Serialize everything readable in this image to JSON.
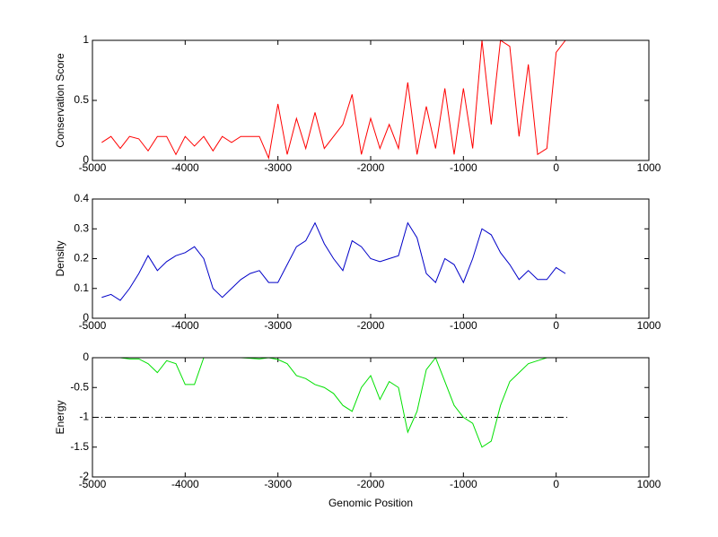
{
  "chart_data": [
    {
      "type": "line",
      "ylabel": "Conservation Score",
      "color": "#ff0000",
      "x": [
        -4900,
        -4800,
        -4700,
        -4600,
        -4500,
        -4400,
        -4300,
        -4200,
        -4100,
        -4000,
        -3900,
        -3800,
        -3700,
        -3600,
        -3500,
        -3400,
        -3300,
        -3200,
        -3100,
        -3000,
        -2900,
        -2800,
        -2700,
        -2600,
        -2500,
        -2400,
        -2300,
        -2200,
        -2100,
        -2000,
        -1900,
        -1800,
        -1700,
        -1600,
        -1500,
        -1400,
        -1300,
        -1200,
        -1100,
        -1000,
        -900,
        -800,
        -700,
        -600,
        -500,
        -400,
        -300,
        -200,
        -100,
        0,
        100
      ],
      "values": [
        0.15,
        0.2,
        0.1,
        0.2,
        0.18,
        0.08,
        0.2,
        0.2,
        0.05,
        0.2,
        0.12,
        0.2,
        0.08,
        0.2,
        0.15,
        0.2,
        0.2,
        0.2,
        0.02,
        0.47,
        0.05,
        0.35,
        0.1,
        0.4,
        0.1,
        0.2,
        0.3,
        0.55,
        0.05,
        0.35,
        0.1,
        0.3,
        0.1,
        0.65,
        0.05,
        0.45,
        0.1,
        0.6,
        0.05,
        0.6,
        0.1,
        1,
        0.3,
        1,
        0.95,
        0.2,
        0.8,
        0.05,
        0.1,
        0.9,
        1
      ],
      "xlim": [
        -5000,
        1000
      ],
      "xticks": [
        -5000,
        -4000,
        -3000,
        -2000,
        -1000,
        0,
        1000
      ],
      "ylim": [
        0,
        1
      ],
      "yticks": [
        0,
        0.5,
        1
      ]
    },
    {
      "type": "line",
      "ylabel": "Density",
      "color": "#0000c8",
      "x": [
        -4900,
        -4800,
        -4700,
        -4600,
        -4500,
        -4400,
        -4300,
        -4200,
        -4100,
        -4000,
        -3900,
        -3800,
        -3700,
        -3600,
        -3500,
        -3400,
        -3300,
        -3200,
        -3100,
        -3000,
        -2900,
        -2800,
        -2700,
        -2600,
        -2500,
        -2400,
        -2300,
        -2200,
        -2100,
        -2000,
        -1900,
        -1800,
        -1700,
        -1600,
        -1500,
        -1400,
        -1300,
        -1200,
        -1100,
        -1000,
        -900,
        -800,
        -700,
        -600,
        -500,
        -400,
        -300,
        -200,
        -100,
        0,
        100
      ],
      "values": [
        0.07,
        0.08,
        0.06,
        0.1,
        0.15,
        0.21,
        0.16,
        0.19,
        0.21,
        0.22,
        0.24,
        0.2,
        0.1,
        0.07,
        0.1,
        0.13,
        0.15,
        0.16,
        0.12,
        0.12,
        0.18,
        0.24,
        0.26,
        0.32,
        0.25,
        0.2,
        0.16,
        0.26,
        0.24,
        0.2,
        0.19,
        0.2,
        0.21,
        0.32,
        0.27,
        0.15,
        0.12,
        0.2,
        0.18,
        0.12,
        0.2,
        0.3,
        0.28,
        0.22,
        0.18,
        0.13,
        0.16,
        0.13,
        0.13,
        0.17,
        0.15
      ],
      "xlim": [
        -5000,
        1000
      ],
      "xticks": [
        -5000,
        -4000,
        -3000,
        -2000,
        -1000,
        0,
        1000
      ],
      "ylim": [
        0,
        0.4
      ],
      "yticks": [
        0,
        0.1,
        0.2,
        0.3,
        0.4
      ]
    },
    {
      "type": "line",
      "ylabel": "Energy",
      "xlabel": "Genomic Position",
      "color": "#00e000",
      "x": [
        -4700,
        -4600,
        -4500,
        -4400,
        -4300,
        -4200,
        -4100,
        -4000,
        -3900,
        -3800,
        -3700,
        -3600,
        -3500,
        -3400,
        -3300,
        -3200,
        -3100,
        -3000,
        -2900,
        -2800,
        -2700,
        -2600,
        -2500,
        -2400,
        -2300,
        -2200,
        -2100,
        -2000,
        -1900,
        -1800,
        -1700,
        -1600,
        -1500,
        -1400,
        -1300,
        -1200,
        -1100,
        -1000,
        -900,
        -800,
        -700,
        -600,
        -500,
        -400,
        -300,
        -200,
        -100
      ],
      "values": [
        0,
        -0.02,
        -0.02,
        -0.1,
        -0.25,
        -0.05,
        -0.1,
        -0.45,
        -0.45,
        0,
        0,
        0,
        0,
        0,
        -0.01,
        -0.02,
        0,
        -0.03,
        -0.1,
        -0.3,
        -0.35,
        -0.45,
        -0.5,
        -0.6,
        -0.8,
        -0.9,
        -0.5,
        -0.3,
        -0.7,
        -0.4,
        -0.5,
        -1.25,
        -0.9,
        -0.2,
        0,
        -0.4,
        -0.8,
        -1.0,
        -1.1,
        -1.5,
        -1.4,
        -0.8,
        -0.4,
        -0.25,
        -0.1,
        -0.05,
        0
      ],
      "reference_line": {
        "y": -1,
        "x": [
          -5000,
          120
        ]
      },
      "xlim": [
        -5000,
        1000
      ],
      "xticks": [
        -5000,
        -4000,
        -3000,
        -2000,
        -1000,
        0,
        1000
      ],
      "ylim": [
        -2,
        0
      ],
      "yticks": [
        -2,
        -1.5,
        -1,
        -0.5,
        0
      ]
    }
  ]
}
